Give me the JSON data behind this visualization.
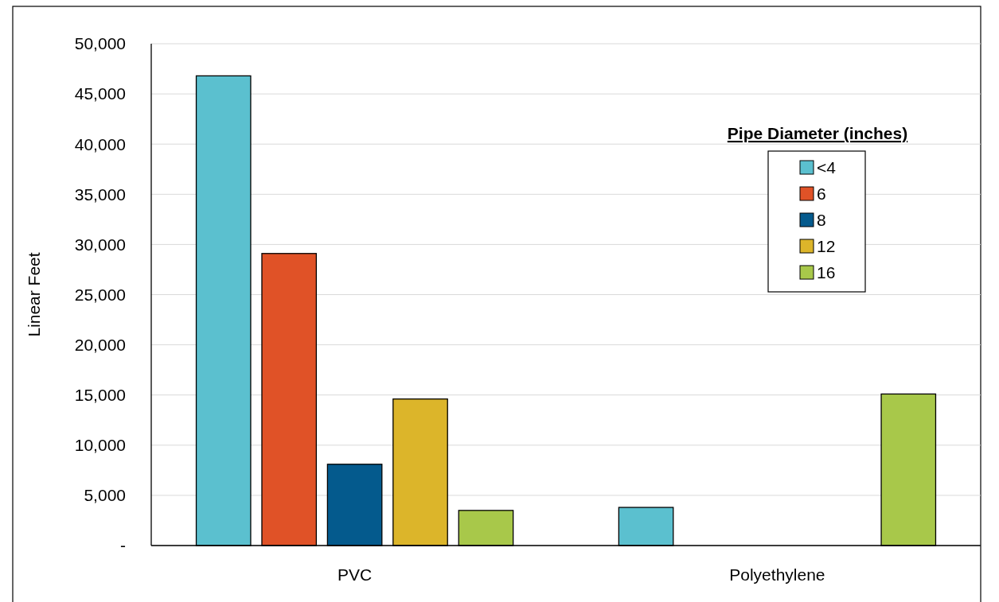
{
  "chart_data": {
    "type": "bar",
    "categories": [
      "PVC",
      "Polyethylene"
    ],
    "ylabel": "Linear Feet",
    "legend_title": "Pipe Diameter (inches)",
    "legend": "top right",
    "grid": "y",
    "ylim": [
      0,
      50000
    ],
    "yticks": [
      {
        "value": 0,
        "label": "-"
      },
      {
        "value": 5000,
        "label": "5,000"
      },
      {
        "value": 10000,
        "label": "10,000"
      },
      {
        "value": 15000,
        "label": "15,000"
      },
      {
        "value": 20000,
        "label": "20,000"
      },
      {
        "value": 25000,
        "label": "25,000"
      },
      {
        "value": 30000,
        "label": "30,000"
      },
      {
        "value": 35000,
        "label": "35,000"
      },
      {
        "value": 40000,
        "label": "40,000"
      },
      {
        "value": 45000,
        "label": "45,000"
      },
      {
        "value": 50000,
        "label": "50,000"
      }
    ],
    "series": [
      {
        "name": "<4",
        "color": "#5bc0cf",
        "values": [
          46800,
          3800
        ]
      },
      {
        "name": "6",
        "color": "#e05227",
        "values": [
          29100,
          null
        ]
      },
      {
        "name": "8",
        "color": "#045a8d",
        "values": [
          8100,
          null
        ]
      },
      {
        "name": "12",
        "color": "#dcb52a",
        "values": [
          14600,
          null
        ]
      },
      {
        "name": "16",
        "color": "#a8c84a",
        "values": [
          3500,
          15100
        ]
      }
    ]
  }
}
